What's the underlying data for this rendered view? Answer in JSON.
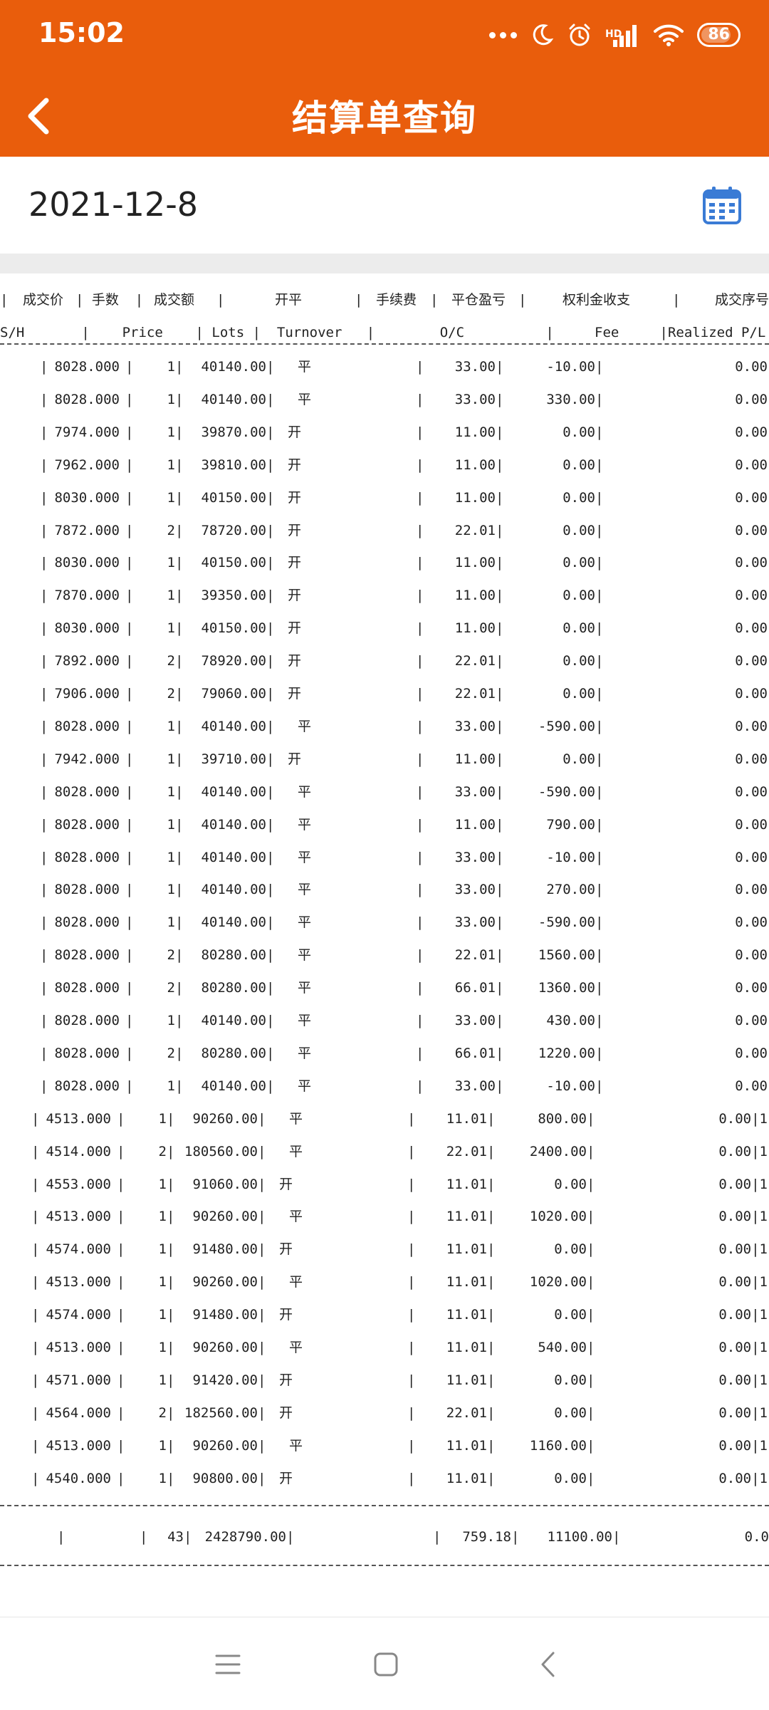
{
  "status_bar": {
    "time": "15:02",
    "signal_label": "HD",
    "battery": "86",
    "battery_level": 0.86,
    "icons": [
      "dots-icon",
      "moon-icon",
      "alarm-icon",
      "signal-icon",
      "wifi-icon",
      "battery-icon"
    ]
  },
  "app_bar": {
    "title": "结算单查询",
    "back_icon": "chevron-left-icon",
    "color": "#E95D0C"
  },
  "date": {
    "value": "2021-12-8",
    "calendar_icon": "calendar-icon",
    "icon_color": "#3A7BD5"
  },
  "statement": {
    "header_cn": [
      "|",
      "成交价",
      "| 手数  |",
      "成交额",
      "|",
      "开平",
      "|",
      "手续费",
      "|",
      "平仓盈亏",
      "|",
      "权利金收支",
      "|",
      "成交序号"
    ],
    "header_en": "S/H       |    Price    | Lots |  Turnover   |        O/C          |     Fee     |Realized P/L|Premium Received/Pa",
    "rows": [
      {
        "price": "8028.000",
        "lots": "1",
        "turnover": "40140.00",
        "oc": "平",
        "fee": "33.00",
        "pl": "-10.00",
        "prem": "0.00"
      },
      {
        "price": "8028.000",
        "lots": "1",
        "turnover": "40140.00",
        "oc": "平",
        "fee": "33.00",
        "pl": "330.00",
        "prem": "0.00"
      },
      {
        "price": "7974.000",
        "lots": "1",
        "turnover": "39870.00",
        "oc": "开",
        "fee": "11.00",
        "pl": "0.00",
        "prem": "0.00"
      },
      {
        "price": "7962.000",
        "lots": "1",
        "turnover": "39810.00",
        "oc": "开",
        "fee": "11.00",
        "pl": "0.00",
        "prem": "0.00"
      },
      {
        "price": "8030.000",
        "lots": "1",
        "turnover": "40150.00",
        "oc": "开",
        "fee": "11.00",
        "pl": "0.00",
        "prem": "0.00"
      },
      {
        "price": "7872.000",
        "lots": "2",
        "turnover": "78720.00",
        "oc": "开",
        "fee": "22.01",
        "pl": "0.00",
        "prem": "0.00"
      },
      {
        "price": "8030.000",
        "lots": "1",
        "turnover": "40150.00",
        "oc": "开",
        "fee": "11.00",
        "pl": "0.00",
        "prem": "0.00"
      },
      {
        "price": "7870.000",
        "lots": "1",
        "turnover": "39350.00",
        "oc": "开",
        "fee": "11.00",
        "pl": "0.00",
        "prem": "0.00"
      },
      {
        "price": "8030.000",
        "lots": "1",
        "turnover": "40150.00",
        "oc": "开",
        "fee": "11.00",
        "pl": "0.00",
        "prem": "0.00"
      },
      {
        "price": "7892.000",
        "lots": "2",
        "turnover": "78920.00",
        "oc": "开",
        "fee": "22.01",
        "pl": "0.00",
        "prem": "0.00"
      },
      {
        "price": "7906.000",
        "lots": "2",
        "turnover": "79060.00",
        "oc": "开",
        "fee": "22.01",
        "pl": "0.00",
        "prem": "0.00"
      },
      {
        "price": "8028.000",
        "lots": "1",
        "turnover": "40140.00",
        "oc": "平",
        "fee": "33.00",
        "pl": "-590.00",
        "prem": "0.00"
      },
      {
        "price": "7942.000",
        "lots": "1",
        "turnover": "39710.00",
        "oc": "开",
        "fee": "11.00",
        "pl": "0.00",
        "prem": "0.00"
      },
      {
        "price": "8028.000",
        "lots": "1",
        "turnover": "40140.00",
        "oc": "平",
        "fee": "33.00",
        "pl": "-590.00",
        "prem": "0.00"
      },
      {
        "price": "8028.000",
        "lots": "1",
        "turnover": "40140.00",
        "oc": "平",
        "fee": "11.00",
        "pl": "790.00",
        "prem": "0.00"
      },
      {
        "price": "8028.000",
        "lots": "1",
        "turnover": "40140.00",
        "oc": "平",
        "fee": "33.00",
        "pl": "-10.00",
        "prem": "0.00"
      },
      {
        "price": "8028.000",
        "lots": "1",
        "turnover": "40140.00",
        "oc": "平",
        "fee": "33.00",
        "pl": "270.00",
        "prem": "0.00"
      },
      {
        "price": "8028.000",
        "lots": "1",
        "turnover": "40140.00",
        "oc": "平",
        "fee": "33.00",
        "pl": "-590.00",
        "prem": "0.00"
      },
      {
        "price": "8028.000",
        "lots": "2",
        "turnover": "80280.00",
        "oc": "平",
        "fee": "22.01",
        "pl": "1560.00",
        "prem": "0.00"
      },
      {
        "price": "8028.000",
        "lots": "2",
        "turnover": "80280.00",
        "oc": "平",
        "fee": "66.01",
        "pl": "1360.00",
        "prem": "0.00"
      },
      {
        "price": "8028.000",
        "lots": "1",
        "turnover": "40140.00",
        "oc": "平",
        "fee": "33.00",
        "pl": "430.00",
        "prem": "0.00"
      },
      {
        "price": "8028.000",
        "lots": "2",
        "turnover": "80280.00",
        "oc": "平",
        "fee": "66.01",
        "pl": "1220.00",
        "prem": "0.00"
      },
      {
        "price": "8028.000",
        "lots": "1",
        "turnover": "40140.00",
        "oc": "平",
        "fee": "33.00",
        "pl": "-10.00",
        "prem": "0.00"
      },
      {
        "price": "4513.000",
        "lots": "1",
        "turnover": "90260.00",
        "oc": "平",
        "fee": "11.01",
        "pl": "800.00",
        "prem": "0.00|1"
      },
      {
        "price": "4514.000",
        "lots": "2",
        "turnover": "180560.00",
        "oc": "平",
        "fee": "22.01",
        "pl": "2400.00",
        "prem": "0.00|1"
      },
      {
        "price": "4553.000",
        "lots": "1",
        "turnover": "91060.00",
        "oc": "开",
        "fee": "11.01",
        "pl": "0.00",
        "prem": "0.00|1"
      },
      {
        "price": "4513.000",
        "lots": "1",
        "turnover": "90260.00",
        "oc": "平",
        "fee": "11.01",
        "pl": "1020.00",
        "prem": "0.00|1"
      },
      {
        "price": "4574.000",
        "lots": "1",
        "turnover": "91480.00",
        "oc": "开",
        "fee": "11.01",
        "pl": "0.00",
        "prem": "0.00|1"
      },
      {
        "price": "4513.000",
        "lots": "1",
        "turnover": "90260.00",
        "oc": "平",
        "fee": "11.01",
        "pl": "1020.00",
        "prem": "0.00|1"
      },
      {
        "price": "4574.000",
        "lots": "1",
        "turnover": "91480.00",
        "oc": "开",
        "fee": "11.01",
        "pl": "0.00",
        "prem": "0.00|1"
      },
      {
        "price": "4513.000",
        "lots": "1",
        "turnover": "90260.00",
        "oc": "平",
        "fee": "11.01",
        "pl": "540.00",
        "prem": "0.00|1"
      },
      {
        "price": "4571.000",
        "lots": "1",
        "turnover": "91420.00",
        "oc": "开",
        "fee": "11.01",
        "pl": "0.00",
        "prem": "0.00|1"
      },
      {
        "price": "4564.000",
        "lots": "2",
        "turnover": "182560.00",
        "oc": "开",
        "fee": "22.01",
        "pl": "0.00",
        "prem": "0.00|1"
      },
      {
        "price": "4513.000",
        "lots": "1",
        "turnover": "90260.00",
        "oc": "平",
        "fee": "11.01",
        "pl": "1160.00",
        "prem": "0.00|1"
      },
      {
        "price": "4540.000",
        "lots": "1",
        "turnover": "90800.00",
        "oc": "开",
        "fee": "11.01",
        "pl": "0.00",
        "prem": "0.00|1"
      }
    ],
    "total": {
      "lots": "43",
      "turnover": "2428790.00",
      "fee": "759.18",
      "pl": "11100.00",
      "prem": "0.0"
    }
  },
  "nav_bar": {
    "icons": [
      "menu-icon",
      "home-icon",
      "back-icon"
    ]
  }
}
